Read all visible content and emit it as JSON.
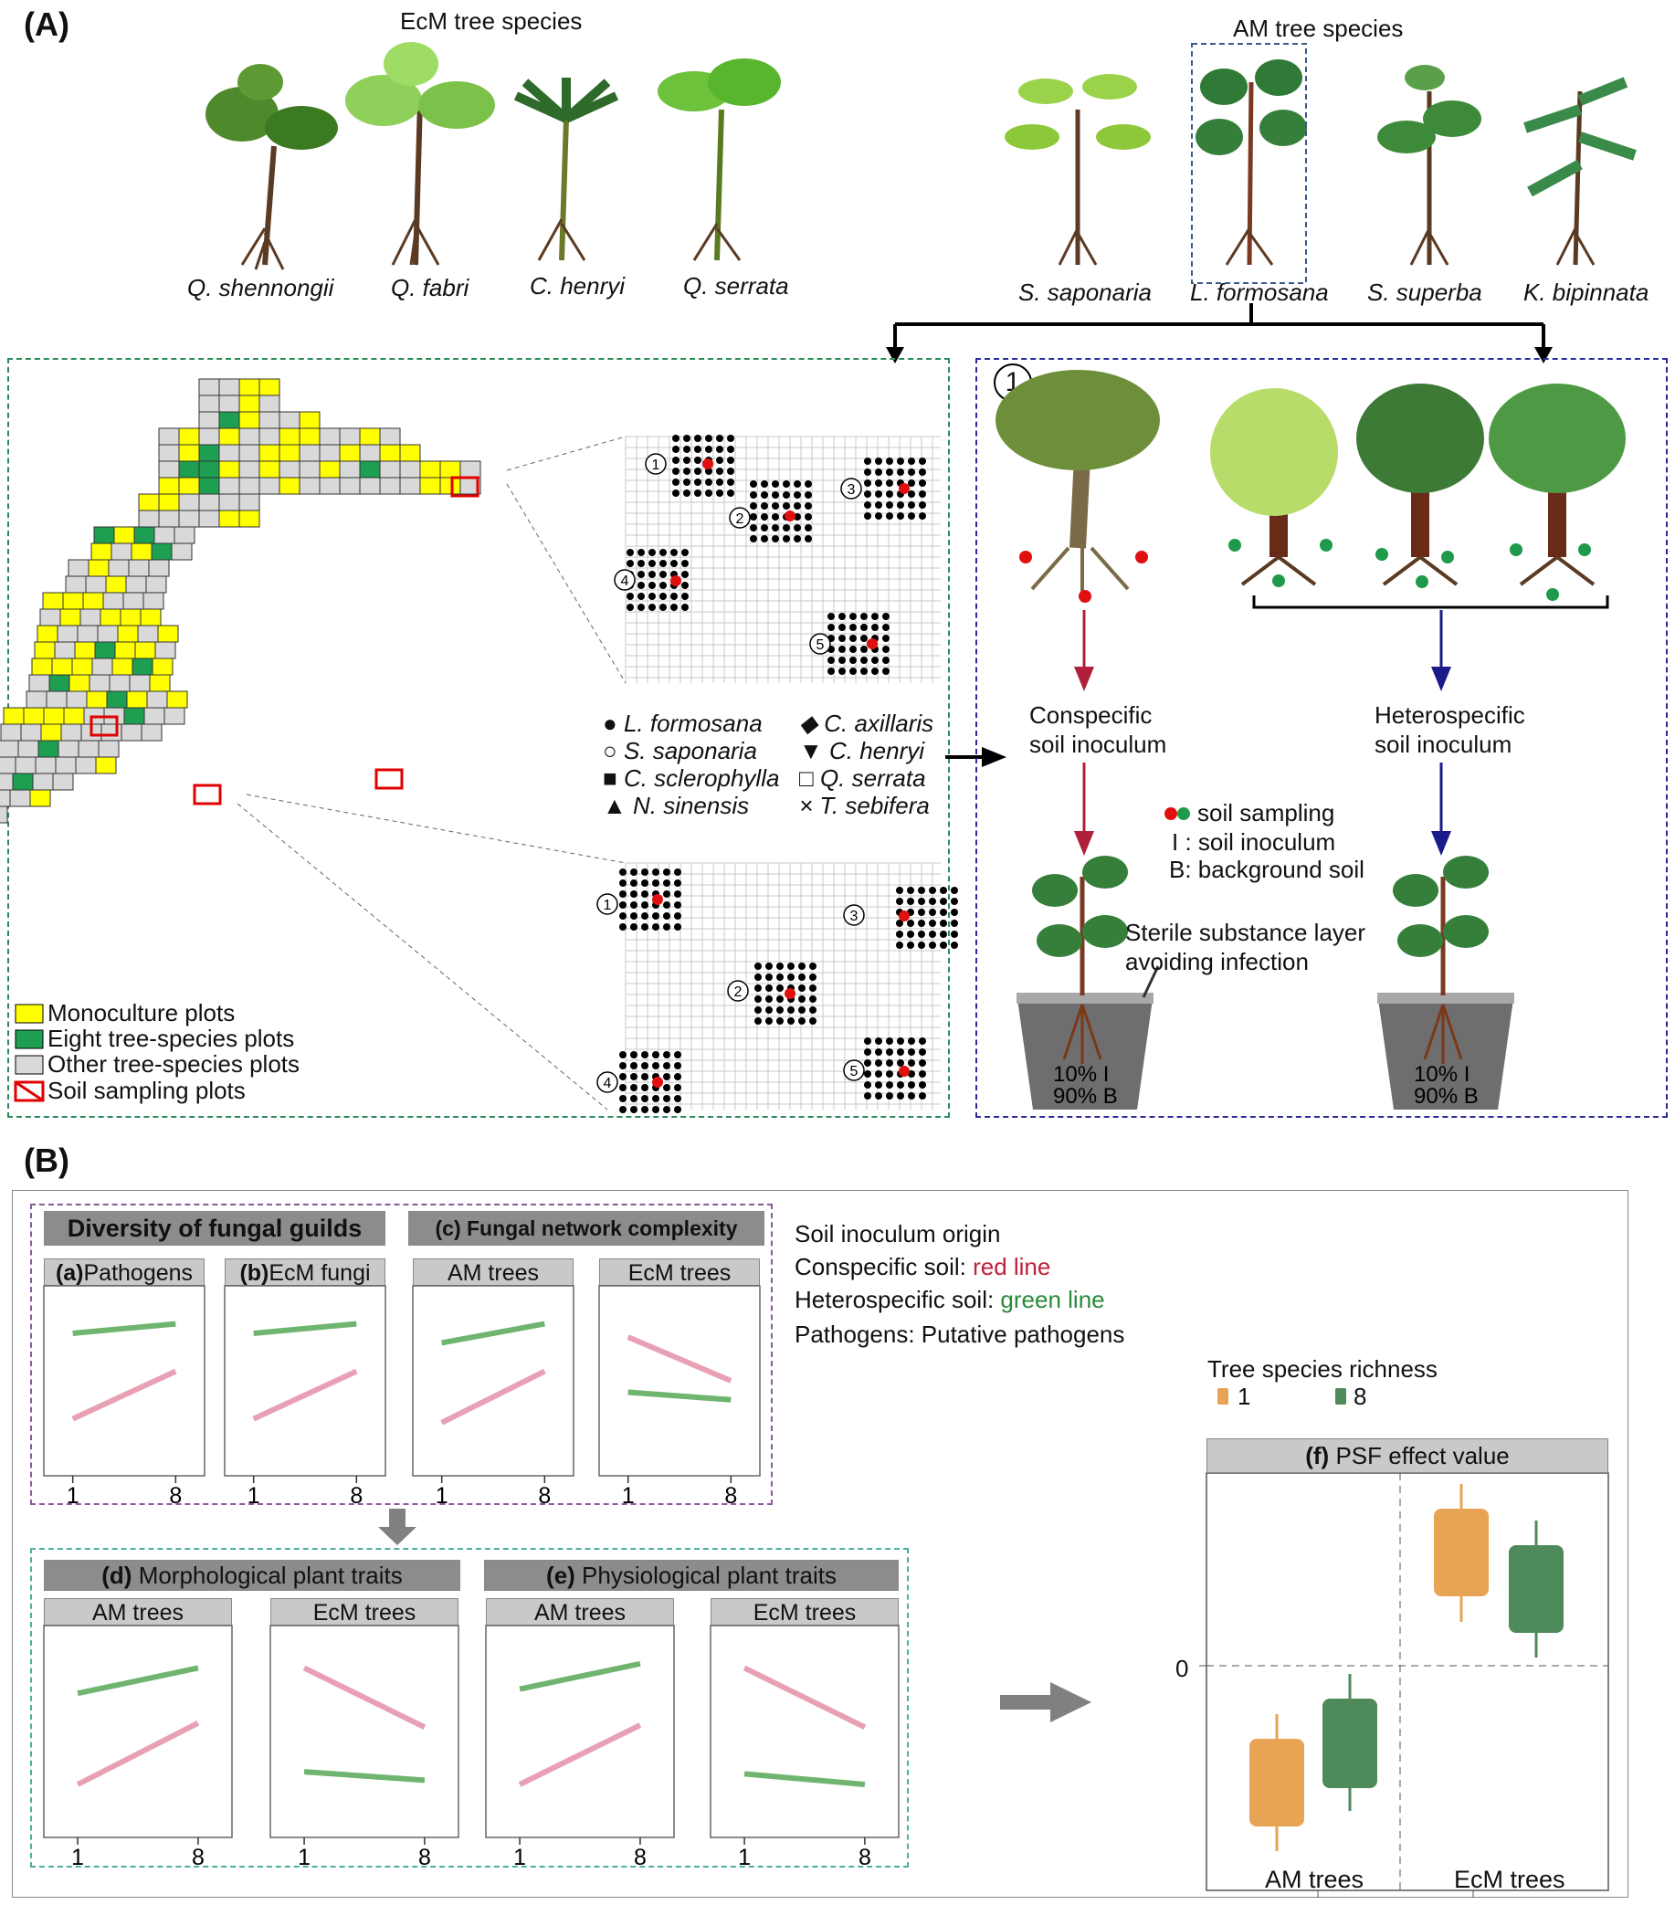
{
  "panelA": {
    "label": "(A)",
    "ecm_group_title": "EcM tree species",
    "am_group_title": "AM tree species",
    "ecm_species": [
      "Q. shennongii",
      "Q. fabri",
      "C. henryi",
      "Q. serrata"
    ],
    "am_species": [
      "S. saponaria",
      "L. formosana",
      "S. superba",
      "K. bipinnata"
    ],
    "map_legend": [
      "Monoculture plots",
      "Eight tree-species plots",
      "Other tree-species plots",
      "Soil sampling plots"
    ],
    "species_legend": [
      "L. formosana",
      "S. saponaria",
      "C. sclerophylla",
      "N. sinensis",
      "C. axillaris",
      "C. henryi",
      "Q. serrata",
      "T. sebifera"
    ],
    "plot_numbers": [
      "1",
      "2",
      "3",
      "4",
      "5"
    ],
    "experiment": {
      "step_number": "1",
      "conspecific": [
        "Conspecific",
        "soil inoculum"
      ],
      "heterospecific": [
        "Heterospecific",
        "soil inoculum"
      ],
      "legend": [
        "soil sampling",
        "I : soil inoculum",
        "B: background soil"
      ],
      "sterile_note": [
        "Sterile substance layer",
        "avoiding infection"
      ],
      "pot_text": [
        "10% I",
        "90% B"
      ]
    }
  },
  "panelB": {
    "label": "(B)",
    "diversity_title": "Diversity of fungal guilds",
    "network_title": "(c) Fungal network complexity",
    "facet_a_letter": "(a)",
    "facet_a": "Pathogens",
    "facet_b_letter": "(b)",
    "facet_b": "EcM fungi",
    "am_trees": "AM trees",
    "ecm_trees": "EcM trees",
    "x_ticks": [
      "1",
      "8"
    ],
    "morph_letter": "(d)",
    "morph_title": "Morphological plant traits",
    "phys_letter": "(e)",
    "phys_title": "Physiological plant traits",
    "soil_origin": {
      "heading": "Soil inoculum origin",
      "con_label": "Conspecific soil: ",
      "con_value": "red line",
      "het_label": "Heterospecific soil: ",
      "het_value": "green line",
      "pathogens_note": "Pathogens: Putative pathogens"
    },
    "richness": {
      "title": "Tree species richness",
      "levels": [
        "1",
        "8"
      ]
    },
    "psf": {
      "letter": "(f)",
      "title": "PSF effect  value",
      "zero_label": "0",
      "x_labels": [
        "AM trees",
        "EcM trees"
      ]
    }
  },
  "colors": {
    "conspecific": "#e8a0b4",
    "heterospecific": "#6fb46f",
    "monoculture": "#ffff00",
    "eight_species": "#1e9e50",
    "other": "#d9d9d9",
    "richness_1": "#e8a455",
    "richness_8": "#4f8a5a"
  }
}
